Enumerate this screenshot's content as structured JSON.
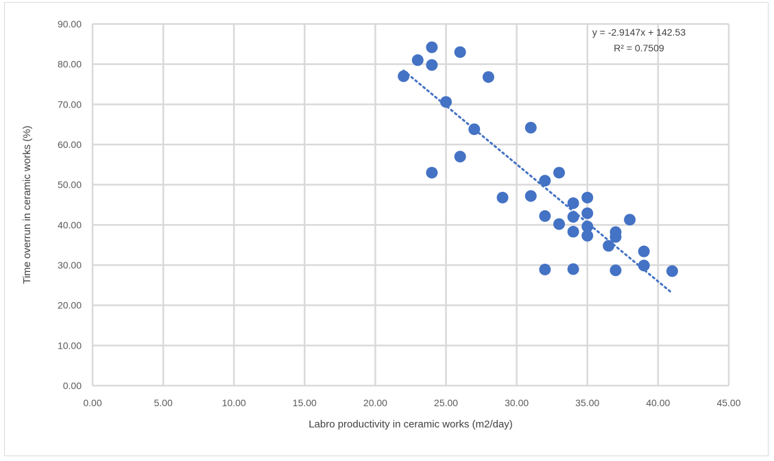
{
  "chart_data": {
    "type": "scatter",
    "xlabel": "Labro productivity in ceramic works (m2/day)",
    "ylabel": "Time overrun in ceramic works (%)",
    "xlim": [
      0,
      45
    ],
    "ylim": [
      0,
      90
    ],
    "x_ticks": [
      "0.00",
      "5.00",
      "10.00",
      "15.00",
      "20.00",
      "25.00",
      "30.00",
      "35.00",
      "40.00",
      "45.00"
    ],
    "y_ticks": [
      "0.00",
      "10.00",
      "20.00",
      "30.00",
      "40.00",
      "50.00",
      "60.00",
      "70.00",
      "80.00",
      "90.00"
    ],
    "grid": true,
    "marker_color": "#4472c4",
    "trendline": {
      "type": "linear",
      "slope": -2.9147,
      "intercept": 142.53,
      "x_range": [
        22,
        41
      ],
      "style": "dotted",
      "equation_label": "y = -2.9147x + 142.53",
      "r2_label": "R² = 0.7509"
    },
    "points": [
      {
        "x": 22,
        "y": 77.0
      },
      {
        "x": 23,
        "y": 81.0
      },
      {
        "x": 24,
        "y": 84.2
      },
      {
        "x": 24,
        "y": 79.8
      },
      {
        "x": 24,
        "y": 53.0
      },
      {
        "x": 25,
        "y": 70.6
      },
      {
        "x": 26,
        "y": 83.0
      },
      {
        "x": 26,
        "y": 57.0
      },
      {
        "x": 27,
        "y": 63.8
      },
      {
        "x": 28,
        "y": 76.8
      },
      {
        "x": 29,
        "y": 46.8
      },
      {
        "x": 31,
        "y": 64.2
      },
      {
        "x": 31,
        "y": 47.2
      },
      {
        "x": 32,
        "y": 51.0
      },
      {
        "x": 32,
        "y": 42.2
      },
      {
        "x": 32,
        "y": 28.9
      },
      {
        "x": 33,
        "y": 53.0
      },
      {
        "x": 33,
        "y": 40.2
      },
      {
        "x": 34,
        "y": 45.4
      },
      {
        "x": 34,
        "y": 42.0
      },
      {
        "x": 34,
        "y": 38.3
      },
      {
        "x": 34,
        "y": 29.0
      },
      {
        "x": 35,
        "y": 46.8
      },
      {
        "x": 35,
        "y": 42.9
      },
      {
        "x": 35,
        "y": 39.6
      },
      {
        "x": 35,
        "y": 37.3
      },
      {
        "x": 36.5,
        "y": 34.8
      },
      {
        "x": 37,
        "y": 38.2
      },
      {
        "x": 37,
        "y": 37.0
      },
      {
        "x": 37,
        "y": 28.7
      },
      {
        "x": 38,
        "y": 41.3
      },
      {
        "x": 39,
        "y": 33.4
      },
      {
        "x": 39,
        "y": 29.9
      },
      {
        "x": 41,
        "y": 28.5
      }
    ]
  }
}
